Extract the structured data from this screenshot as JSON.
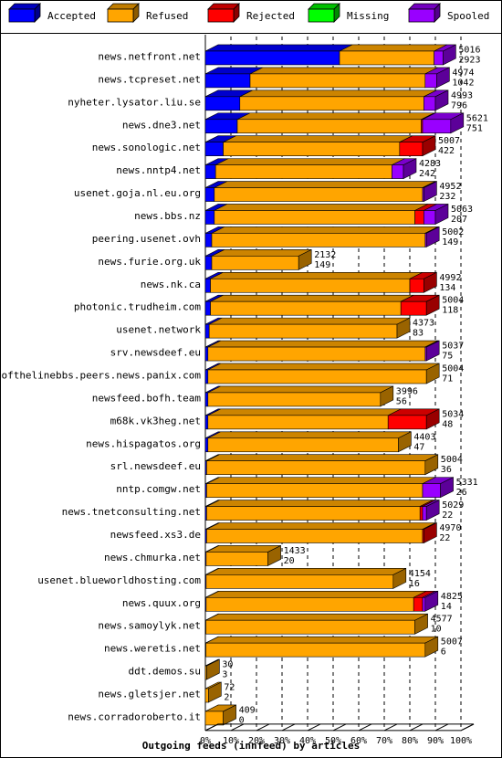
{
  "chart_data": {
    "type": "bar",
    "stacked": true,
    "orientation": "horizontal",
    "title": "",
    "xlabel": "Outgoing feeds (innfeed) by articles",
    "ylabel": "",
    "xlim": [
      0,
      100
    ],
    "x_ticks": [
      "0%",
      "10%",
      "20%",
      "30%",
      "40%",
      "50%",
      "60%",
      "70%",
      "80%",
      "90%",
      "100%"
    ],
    "grid": true,
    "legend_position": "top",
    "legend": [
      {
        "name": "Accepted",
        "color": "#0000ff"
      },
      {
        "name": "Refused",
        "color": "#ffa500"
      },
      {
        "name": "Rejected",
        "color": "#ff0000"
      },
      {
        "name": "Missing",
        "color": "#00ff00"
      },
      {
        "name": "Spooled",
        "color": "#9900ff"
      }
    ],
    "series_names": [
      "Accepted",
      "Refused",
      "Rejected",
      "Missing",
      "Spooled"
    ],
    "rows": [
      {
        "label": "news.netfront.net",
        "offered": "5016",
        "accepted": "2923",
        "pct": [
          52.5,
          37.0,
          0,
          0,
          3.5
        ]
      },
      {
        "label": "news.tcpreset.net",
        "offered": "4974",
        "accepted": "1042",
        "pct": [
          17.5,
          68.5,
          0,
          0,
          4.5
        ]
      },
      {
        "label": "nyheter.lysator.liu.se",
        "offered": "4993",
        "accepted": "796",
        "pct": [
          13.5,
          72.0,
          0,
          0,
          4.5
        ]
      },
      {
        "label": "news.dne3.net",
        "offered": "5621",
        "accepted": "751",
        "pct": [
          12.5,
          72.0,
          0.5,
          0,
          11.0
        ]
      },
      {
        "label": "news.sonologic.net",
        "offered": "5007",
        "accepted": "422",
        "pct": [
          7.0,
          69.0,
          9.0,
          0,
          0
        ]
      },
      {
        "label": "news.nntp4.net",
        "offered": "4283",
        "accepted": "242",
        "pct": [
          4.0,
          69.0,
          0,
          0,
          4.5
        ]
      },
      {
        "label": "usenet.goja.nl.eu.org",
        "offered": "4952",
        "accepted": "232",
        "pct": [
          3.5,
          81.5,
          0,
          0,
          0.5
        ]
      },
      {
        "label": "news.bbs.nz",
        "offered": "5063",
        "accepted": "207",
        "pct": [
          3.5,
          78.5,
          3.5,
          0,
          4.5
        ]
      },
      {
        "label": "peering.usenet.ovh",
        "offered": "5002",
        "accepted": "149",
        "pct": [
          2.5,
          83.5,
          0,
          0,
          0.5
        ]
      },
      {
        "label": "news.furie.org.uk",
        "offered": "2132",
        "accepted": "149",
        "pct": [
          2.5,
          34.0,
          0,
          0,
          0
        ]
      },
      {
        "label": "news.nk.ca",
        "offered": "4992",
        "accepted": "134",
        "pct": [
          2.0,
          78.0,
          5.5,
          0,
          0
        ]
      },
      {
        "label": "photonic.trudheim.com",
        "offered": "5004",
        "accepted": "118",
        "pct": [
          2.0,
          74.5,
          10.0,
          0,
          0
        ]
      },
      {
        "label": "usenet.network",
        "offered": "4373",
        "accepted": "83",
        "pct": [
          1.5,
          73.5,
          0,
          0,
          0
        ]
      },
      {
        "label": "srv.newsdeef.eu",
        "offered": "5037",
        "accepted": "75",
        "pct": [
          1.0,
          85.0,
          0,
          0,
          0.5
        ]
      },
      {
        "label": "endofthelinebbs.peers.news.panix.com",
        "offered": "5004",
        "accepted": "71",
        "pct": [
          1.0,
          85.5,
          0,
          0,
          0
        ]
      },
      {
        "label": "newsfeed.bofh.team",
        "offered": "3996",
        "accepted": "56",
        "pct": [
          1.0,
          67.5,
          0,
          0,
          0
        ]
      },
      {
        "label": "m68k.vk3heg.net",
        "offered": "5034",
        "accepted": "48",
        "pct": [
          1.0,
          70.5,
          15.0,
          0,
          0
        ]
      },
      {
        "label": "news.hispagatos.org",
        "offered": "4403",
        "accepted": "47",
        "pct": [
          1.0,
          74.5,
          0,
          0,
          0
        ]
      },
      {
        "label": "srl.newsdeef.eu",
        "offered": "5004",
        "accepted": "36",
        "pct": [
          0.5,
          85.5,
          0,
          0,
          0
        ]
      },
      {
        "label": "nntp.comgw.net",
        "offered": "5331",
        "accepted": "26",
        "pct": [
          0.5,
          84.5,
          0,
          0,
          7.0
        ]
      },
      {
        "label": "news.tnetconsulting.net",
        "offered": "5029",
        "accepted": "22",
        "pct": [
          0.5,
          83.5,
          1.0,
          0,
          1.5
        ]
      },
      {
        "label": "newsfeed.xs3.de",
        "offered": "4970",
        "accepted": "22",
        "pct": [
          0.5,
          84.5,
          0.5,
          0,
          0
        ]
      },
      {
        "label": "news.chmurka.net",
        "offered": "1433",
        "accepted": "20",
        "pct": [
          0.3,
          24.2,
          0,
          0,
          0
        ]
      },
      {
        "label": "usenet.blueworldhosting.com",
        "offered": "4154",
        "accepted": "16",
        "pct": [
          0.3,
          73.2,
          0,
          0,
          0
        ]
      },
      {
        "label": "news.quux.org",
        "offered": "4825",
        "accepted": "14",
        "pct": [
          0.3,
          81.2,
          3.5,
          0,
          1.0
        ]
      },
      {
        "label": "news.samoylyk.net",
        "offered": "4577",
        "accepted": "10",
        "pct": [
          0.2,
          81.8,
          0,
          0,
          0
        ]
      },
      {
        "label": "news.weretis.net",
        "offered": "5007",
        "accepted": "6",
        "pct": [
          0.2,
          85.8,
          0,
          0,
          0
        ]
      },
      {
        "label": "ddt.demos.su",
        "offered": "30",
        "accepted": "3",
        "pct": [
          0,
          0.5,
          0,
          0,
          0
        ]
      },
      {
        "label": "news.gletsjer.net",
        "offered": "72",
        "accepted": "2",
        "pct": [
          0,
          1.2,
          0,
          0,
          0
        ]
      },
      {
        "label": "news.corradoroberto.it",
        "offered": "409",
        "accepted": "0",
        "pct": [
          0,
          7.0,
          0,
          0,
          0
        ]
      }
    ]
  }
}
